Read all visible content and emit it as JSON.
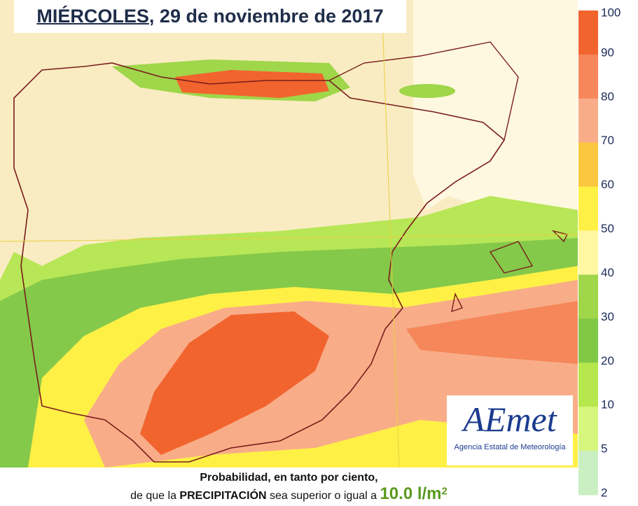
{
  "header": {
    "title_day": "MIÉRCOLES",
    "title_rest": ", 29 de noviembre de 2017"
  },
  "legend": {
    "ticks": [
      100,
      90,
      80,
      70,
      60,
      50,
      40,
      30,
      20,
      10,
      5,
      2
    ],
    "colors": [
      "#f2642e",
      "#f5875a",
      "#f8ad88",
      "#fbc73e",
      "#fff046",
      "#fff7a2",
      "#9fd64a",
      "#82c847",
      "#b6e84e",
      "#d6f77e",
      "#c9efc3"
    ]
  },
  "caption": {
    "line1": "Probabilidad, en tanto por ciento,",
    "line2": [
      "de que la ",
      "PRECIPITACIÓN",
      " sea superior o igual a ",
      "10.0 l/m",
      "2"
    ]
  },
  "logo": {
    "mark": "AEmet",
    "name": "Agencia Estatal de Meteorología"
  }
}
